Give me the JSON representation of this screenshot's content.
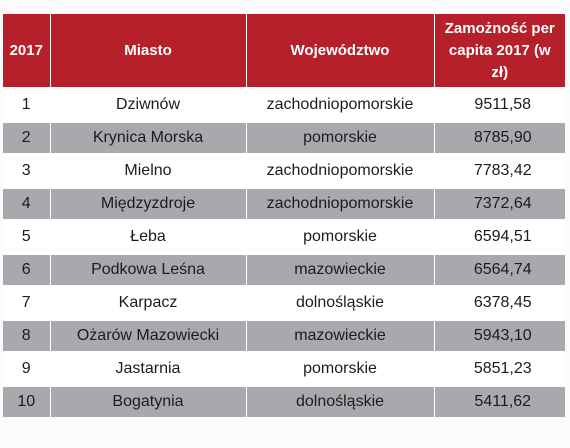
{
  "header": {
    "rank": "2017",
    "city": "Miasto",
    "voivodeship": "Województwo",
    "wealth_line1": "Zamożność per",
    "wealth_line2": "capita 2017 (w zł)"
  },
  "rows": [
    {
      "rank": "1",
      "city": "Dziwnów",
      "voivodeship": "zachodniopomorskie",
      "wealth": "9511,58"
    },
    {
      "rank": "2",
      "city": "Krynica Morska",
      "voivodeship": "pomorskie",
      "wealth": "8785,90"
    },
    {
      "rank": "3",
      "city": "Mielno",
      "voivodeship": "zachodniopomorskie",
      "wealth": "7783,42"
    },
    {
      "rank": "4",
      "city": "Międzyzdroje",
      "voivodeship": "zachodniopomorskie",
      "wealth": "7372,64"
    },
    {
      "rank": "5",
      "city": "Łeba",
      "voivodeship": "pomorskie",
      "wealth": "6594,51"
    },
    {
      "rank": "6",
      "city": "Podkowa Leśna",
      "voivodeship": "mazowieckie",
      "wealth": "6564,74"
    },
    {
      "rank": "7",
      "city": "Karpacz",
      "voivodeship": "dolnośląskie",
      "wealth": "6378,45"
    },
    {
      "rank": "8",
      "city": "Ożarów Mazowiecki",
      "voivodeship": "mazowieckie",
      "wealth": "5943,10"
    },
    {
      "rank": "9",
      "city": "Jastarnia",
      "voivodeship": "pomorskie",
      "wealth": "5851,23"
    },
    {
      "rank": "10",
      "city": "Bogatynia",
      "voivodeship": "dolnośląskie",
      "wealth": "5411,62"
    }
  ],
  "colors": {
    "header_bg": "#b5202b",
    "header_text": "#ffffff",
    "stripe": "#a7a9ac"
  }
}
